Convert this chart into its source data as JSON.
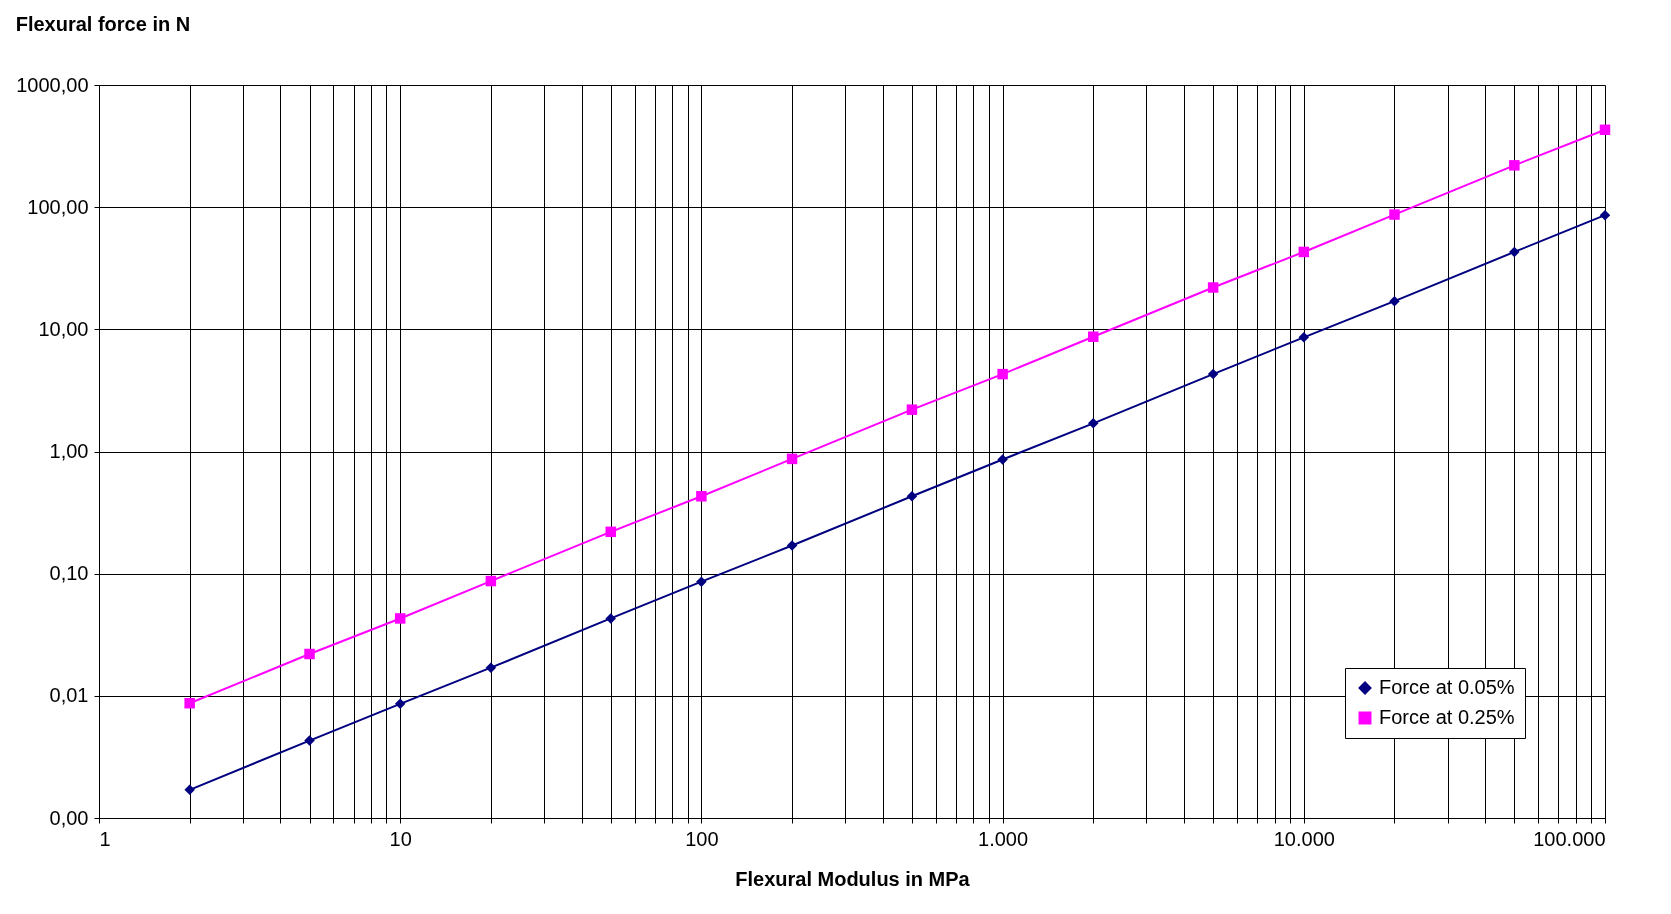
{
  "chart_data": {
    "type": "line",
    "title": "Flexural force in N",
    "xlabel": "Flexural Modulus in MPa",
    "x": [
      2,
      5,
      10,
      20,
      50,
      100,
      200,
      500,
      1000,
      2000,
      5000,
      10000,
      20000,
      50000,
      100000
    ],
    "series": [
      {
        "name": "Force at 0.05%",
        "color": "#000080",
        "marker": "diamond",
        "values": [
          0.0017,
          0.0043,
          0.0086,
          0.017,
          0.043,
          0.086,
          0.17,
          0.43,
          0.86,
          1.7,
          4.3,
          8.6,
          17,
          43,
          86
        ]
      },
      {
        "name": "Force at 0.25%",
        "color": "#ff00ff",
        "marker": "square",
        "values": [
          0.0087,
          0.022,
          0.043,
          0.087,
          0.22,
          0.43,
          0.87,
          2.2,
          4.3,
          8.7,
          22,
          43,
          87,
          220,
          430
        ]
      }
    ],
    "log": "xy",
    "xlim": [
      1,
      100000
    ],
    "ylim": [
      0.001,
      1000
    ],
    "xticks": [
      1,
      {
        "value": 2,
        "label": null
      },
      {
        "value": 3,
        "label": null
      },
      {
        "value": 4,
        "label": null
      },
      {
        "value": 5,
        "label": null
      },
      {
        "value": 6,
        "label": null
      },
      {
        "value": 7,
        "label": null
      },
      {
        "value": 8,
        "label": null
      },
      {
        "value": 9,
        "label": null
      },
      10,
      {
        "value": 20,
        "label": null
      },
      {
        "value": 30,
        "label": null
      },
      {
        "value": 40,
        "label": null
      },
      {
        "value": 50,
        "label": null
      },
      {
        "value": 60,
        "label": null
      },
      {
        "value": 70,
        "label": null
      },
      {
        "value": 80,
        "label": null
      },
      {
        "value": 90,
        "label": null
      },
      100,
      {
        "value": 200,
        "label": null
      },
      {
        "value": 300,
        "label": null
      },
      {
        "value": 400,
        "label": null
      },
      {
        "value": 500,
        "label": null
      },
      {
        "value": 600,
        "label": null
      },
      {
        "value": 700,
        "label": null
      },
      {
        "value": 800,
        "label": null
      },
      {
        "value": 900,
        "label": null
      },
      {
        "value": 1000,
        "label": "1.000"
      },
      {
        "value": 2000,
        "label": null
      },
      {
        "value": 3000,
        "label": null
      },
      {
        "value": 4000,
        "label": null
      },
      {
        "value": 5000,
        "label": null
      },
      {
        "value": 6000,
        "label": null
      },
      {
        "value": 7000,
        "label": null
      },
      {
        "value": 8000,
        "label": null
      },
      {
        "value": 9000,
        "label": null
      },
      {
        "value": 10000,
        "label": "10.000"
      },
      {
        "value": 20000,
        "label": null
      },
      {
        "value": 30000,
        "label": null
      },
      {
        "value": 40000,
        "label": null
      },
      {
        "value": 50000,
        "label": null
      },
      {
        "value": 60000,
        "label": null
      },
      {
        "value": 70000,
        "label": null
      },
      {
        "value": 80000,
        "label": null
      },
      {
        "value": 90000,
        "label": null
      },
      {
        "value": 100000,
        "label": "100.000"
      }
    ],
    "yticks": [
      {
        "value": 0.001,
        "label": "0,00"
      },
      {
        "value": 0.01,
        "label": "0,01"
      },
      {
        "value": 0.1,
        "label": "0,10"
      },
      {
        "value": 1,
        "label": "1,00"
      },
      {
        "value": 10,
        "label": "10,00"
      },
      {
        "value": 100,
        "label": "100,00"
      },
      {
        "value": 1000,
        "label": "1000,00"
      }
    ],
    "grid": true,
    "legend": "bottom right",
    "line_style": "solid"
  }
}
